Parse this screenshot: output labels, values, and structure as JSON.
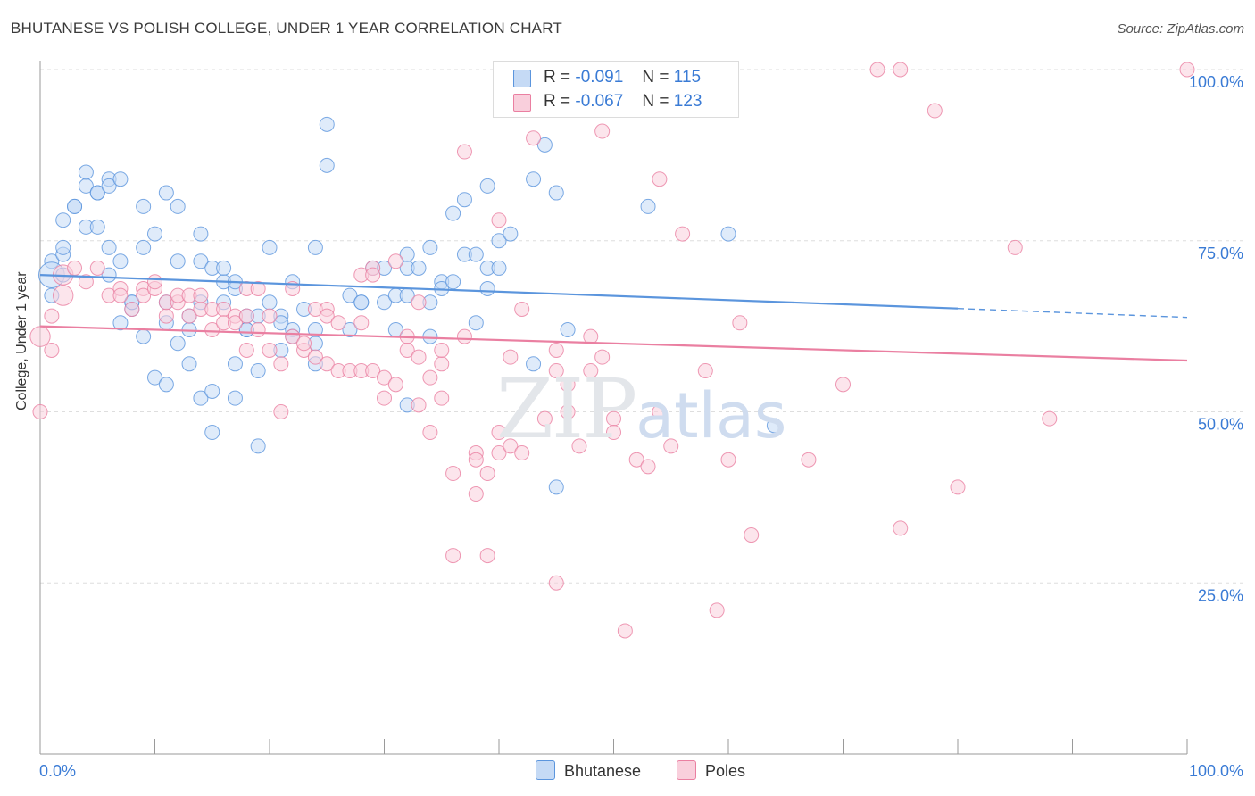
{
  "title": "BHUTANESE VS POLISH COLLEGE, UNDER 1 YEAR CORRELATION CHART",
  "source": "Source: ZipAtlas.com",
  "watermark": {
    "zip": "ZIP",
    "atlas": "atlas"
  },
  "legend": {
    "rows": [
      {
        "r_label": "R =",
        "r_value": "-0.091",
        "n_label": "N =",
        "n_value": "115",
        "color": "#a9c8f0"
      },
      {
        "r_label": "R =",
        "r_value": "-0.067",
        "n_label": "N =",
        "n_value": "123",
        "color": "#f5b8cb"
      }
    ]
  },
  "chart_data": {
    "type": "scatter",
    "title": "BHUTANESE VS POLISH COLLEGE, UNDER 1 YEAR CORRELATION CHART",
    "xlabel": "",
    "ylabel": "College, Under 1 year",
    "xlim": [
      0,
      100
    ],
    "ylim": [
      0,
      100
    ],
    "x_tick_labels": [
      "0.0%",
      "100.0%"
    ],
    "y_tick_labels": [
      "100.0%",
      "75.0%",
      "50.0%",
      "25.0%"
    ],
    "grid": true,
    "series": [
      {
        "name": "Bhutanese",
        "color": "#5b95dd",
        "fill": "#c5daf5",
        "trend": {
          "x0": 0,
          "y0": 70.0,
          "x1": 80,
          "y1": 65.1,
          "dash_to_x": 100,
          "dash_to_y": 63.8
        },
        "points": [
          [
            1,
            72,
            1
          ],
          [
            1,
            70,
            3
          ],
          [
            1,
            67,
            1
          ],
          [
            2,
            70,
            1
          ],
          [
            2,
            73,
            1
          ],
          [
            2,
            74,
            1
          ],
          [
            2,
            78,
            1
          ],
          [
            3,
            80,
            1
          ],
          [
            3,
            80,
            1
          ],
          [
            4,
            83,
            1
          ],
          [
            4,
            85,
            1
          ],
          [
            4,
            77,
            1
          ],
          [
            5,
            82,
            1
          ],
          [
            5,
            77,
            1
          ],
          [
            5,
            82,
            1
          ],
          [
            6,
            84,
            1
          ],
          [
            6,
            83,
            1
          ],
          [
            6,
            74,
            1
          ],
          [
            6,
            70,
            1
          ],
          [
            7,
            72,
            1
          ],
          [
            7,
            63,
            1
          ],
          [
            7,
            84,
            1
          ],
          [
            8,
            65,
            1
          ],
          [
            8,
            66,
            1
          ],
          [
            8,
            66,
            1
          ],
          [
            9,
            74,
            1
          ],
          [
            9,
            80,
            1
          ],
          [
            9,
            61,
            1
          ],
          [
            10,
            76,
            1
          ],
          [
            10,
            55,
            1
          ],
          [
            11,
            54,
            1
          ],
          [
            11,
            63,
            1
          ],
          [
            11,
            82,
            1
          ],
          [
            11,
            66,
            1
          ],
          [
            12,
            72,
            1
          ],
          [
            12,
            60,
            1
          ],
          [
            12,
            80,
            1
          ],
          [
            13,
            57,
            1
          ],
          [
            13,
            62,
            1
          ],
          [
            13,
            64,
            1
          ],
          [
            14,
            66,
            1
          ],
          [
            14,
            76,
            1
          ],
          [
            14,
            72,
            1
          ],
          [
            14,
            52,
            1
          ],
          [
            15,
            53,
            1
          ],
          [
            15,
            47,
            1
          ],
          [
            15,
            71,
            1
          ],
          [
            16,
            69,
            1
          ],
          [
            16,
            66,
            1
          ],
          [
            16,
            71,
            1
          ],
          [
            17,
            52,
            1
          ],
          [
            17,
            57,
            1
          ],
          [
            17,
            68,
            1
          ],
          [
            17,
            69,
            1
          ],
          [
            18,
            64,
            1
          ],
          [
            18,
            62,
            1
          ],
          [
            18,
            62,
            1
          ],
          [
            19,
            45,
            1
          ],
          [
            19,
            64,
            1
          ],
          [
            19,
            56,
            1
          ],
          [
            20,
            66,
            1
          ],
          [
            20,
            74,
            1
          ],
          [
            21,
            59,
            1
          ],
          [
            21,
            64,
            1
          ],
          [
            21,
            63,
            1
          ],
          [
            22,
            62,
            1
          ],
          [
            22,
            61,
            1
          ],
          [
            22,
            69,
            1
          ],
          [
            23,
            65,
            1
          ],
          [
            24,
            62,
            1
          ],
          [
            24,
            57,
            1
          ],
          [
            24,
            74,
            1
          ],
          [
            24,
            60,
            1
          ],
          [
            25,
            92,
            1
          ],
          [
            25,
            86,
            1
          ],
          [
            27,
            67,
            1
          ],
          [
            27,
            62,
            1
          ],
          [
            28,
            66,
            1
          ],
          [
            28,
            66,
            1
          ],
          [
            29,
            71,
            1
          ],
          [
            30,
            71,
            1
          ],
          [
            30,
            66,
            1
          ],
          [
            31,
            62,
            1
          ],
          [
            31,
            67,
            1
          ],
          [
            32,
            71,
            1
          ],
          [
            32,
            51,
            1
          ],
          [
            32,
            67,
            1
          ],
          [
            32,
            73,
            1
          ],
          [
            33,
            71,
            1
          ],
          [
            34,
            74,
            1
          ],
          [
            34,
            61,
            1
          ],
          [
            34,
            66,
            1
          ],
          [
            35,
            69,
            1
          ],
          [
            35,
            68,
            1
          ],
          [
            36,
            69,
            1
          ],
          [
            36,
            79,
            1
          ],
          [
            37,
            81,
            1
          ],
          [
            37,
            73,
            1
          ],
          [
            38,
            73,
            1
          ],
          [
            38,
            63,
            1
          ],
          [
            39,
            71,
            1
          ],
          [
            39,
            68,
            1
          ],
          [
            39,
            83,
            1
          ],
          [
            40,
            71,
            1
          ],
          [
            40,
            75,
            1
          ],
          [
            41,
            76,
            1
          ],
          [
            43,
            84,
            1
          ],
          [
            43,
            57,
            1
          ],
          [
            44,
            89,
            1
          ],
          [
            45,
            82,
            1
          ],
          [
            45,
            39,
            1
          ],
          [
            46,
            62,
            1
          ],
          [
            53,
            80,
            1
          ],
          [
            60,
            76,
            1
          ],
          [
            64,
            48,
            1
          ]
        ]
      },
      {
        "name": "Poles",
        "color": "#ea7fa1",
        "fill": "#f9cfdc",
        "trend": {
          "x0": 0,
          "y0": 62.5,
          "x1": 100,
          "y1": 57.5
        },
        "points": [
          [
            0,
            50,
            1
          ],
          [
            0,
            61,
            2
          ],
          [
            1,
            59,
            1
          ],
          [
            1,
            64,
            1
          ],
          [
            2,
            70,
            2
          ],
          [
            2,
            67,
            2
          ],
          [
            3,
            71,
            1
          ],
          [
            4,
            69,
            1
          ],
          [
            5,
            71,
            1
          ],
          [
            6,
            67,
            1
          ],
          [
            7,
            68,
            1
          ],
          [
            7,
            67,
            1
          ],
          [
            8,
            65,
            1
          ],
          [
            9,
            68,
            1
          ],
          [
            9,
            67,
            1
          ],
          [
            10,
            68,
            1
          ],
          [
            10,
            69,
            1
          ],
          [
            11,
            64,
            1
          ],
          [
            11,
            66,
            1
          ],
          [
            12,
            66,
            1
          ],
          [
            12,
            67,
            1
          ],
          [
            13,
            64,
            1
          ],
          [
            13,
            67,
            1
          ],
          [
            14,
            65,
            1
          ],
          [
            14,
            67,
            1
          ],
          [
            15,
            65,
            1
          ],
          [
            15,
            62,
            1
          ],
          [
            16,
            65,
            1
          ],
          [
            16,
            63,
            1
          ],
          [
            17,
            64,
            1
          ],
          [
            17,
            63,
            1
          ],
          [
            18,
            64,
            1
          ],
          [
            18,
            59,
            1
          ],
          [
            18,
            68,
            1
          ],
          [
            19,
            68,
            1
          ],
          [
            19,
            62,
            1
          ],
          [
            20,
            64,
            1
          ],
          [
            20,
            59,
            1
          ],
          [
            21,
            57,
            1
          ],
          [
            21,
            50,
            1
          ],
          [
            22,
            68,
            1
          ],
          [
            22,
            61,
            1
          ],
          [
            23,
            59,
            1
          ],
          [
            23,
            60,
            1
          ],
          [
            24,
            65,
            1
          ],
          [
            24,
            58,
            1
          ],
          [
            25,
            65,
            1
          ],
          [
            25,
            57,
            1
          ],
          [
            25,
            64,
            1
          ],
          [
            26,
            63,
            1
          ],
          [
            26,
            56,
            1
          ],
          [
            27,
            56,
            1
          ],
          [
            28,
            56,
            1
          ],
          [
            28,
            70,
            1
          ],
          [
            28,
            63,
            1
          ],
          [
            29,
            71,
            1
          ],
          [
            29,
            56,
            1
          ],
          [
            29,
            70,
            1
          ],
          [
            30,
            55,
            1
          ],
          [
            30,
            52,
            1
          ],
          [
            31,
            72,
            1
          ],
          [
            31,
            54,
            1
          ],
          [
            32,
            61,
            1
          ],
          [
            32,
            59,
            1
          ],
          [
            33,
            66,
            1
          ],
          [
            33,
            58,
            1
          ],
          [
            33,
            51,
            1
          ],
          [
            34,
            47,
            1
          ],
          [
            34,
            55,
            1
          ],
          [
            35,
            57,
            1
          ],
          [
            35,
            52,
            1
          ],
          [
            35,
            59,
            1
          ],
          [
            36,
            41,
            1
          ],
          [
            36,
            29,
            1
          ],
          [
            37,
            61,
            1
          ],
          [
            37,
            88,
            1
          ],
          [
            38,
            44,
            1
          ],
          [
            38,
            38,
            1
          ],
          [
            38,
            43,
            1
          ],
          [
            39,
            41,
            1
          ],
          [
            39,
            29,
            1
          ],
          [
            40,
            44,
            1
          ],
          [
            40,
            47,
            1
          ],
          [
            40,
            78,
            1
          ],
          [
            41,
            58,
            1
          ],
          [
            41,
            45,
            1
          ],
          [
            42,
            44,
            1
          ],
          [
            42,
            65,
            1
          ],
          [
            43,
            90,
            1
          ],
          [
            44,
            49,
            1
          ],
          [
            45,
            25,
            1
          ],
          [
            45,
            59,
            1
          ],
          [
            45,
            56,
            1
          ],
          [
            46,
            50,
            1
          ],
          [
            46,
            54,
            1
          ],
          [
            47,
            45,
            1
          ],
          [
            48,
            61,
            1
          ],
          [
            48,
            56,
            1
          ],
          [
            49,
            91,
            1
          ],
          [
            49,
            58,
            1
          ],
          [
            50,
            49,
            1
          ],
          [
            50,
            47,
            1
          ],
          [
            50,
            100,
            1
          ],
          [
            51,
            18,
            1
          ],
          [
            52,
            43,
            1
          ],
          [
            53,
            42,
            1
          ],
          [
            54,
            50,
            1
          ],
          [
            54,
            84,
            1
          ],
          [
            55,
            45,
            1
          ],
          [
            56,
            76,
            1
          ],
          [
            58,
            56,
            1
          ],
          [
            59,
            21,
            1
          ],
          [
            60,
            43,
            1
          ],
          [
            61,
            63,
            1
          ],
          [
            62,
            32,
            1
          ],
          [
            67,
            43,
            1
          ],
          [
            70,
            54,
            1
          ],
          [
            73,
            100,
            1
          ],
          [
            75,
            100,
            1
          ],
          [
            75,
            33,
            1
          ],
          [
            78,
            94,
            1
          ],
          [
            80,
            39,
            1
          ],
          [
            85,
            74,
            1
          ],
          [
            88,
            49,
            1
          ],
          [
            100,
            100,
            1
          ]
        ]
      }
    ]
  },
  "bottom_legend": [
    "Bhutanese",
    "Poles"
  ]
}
